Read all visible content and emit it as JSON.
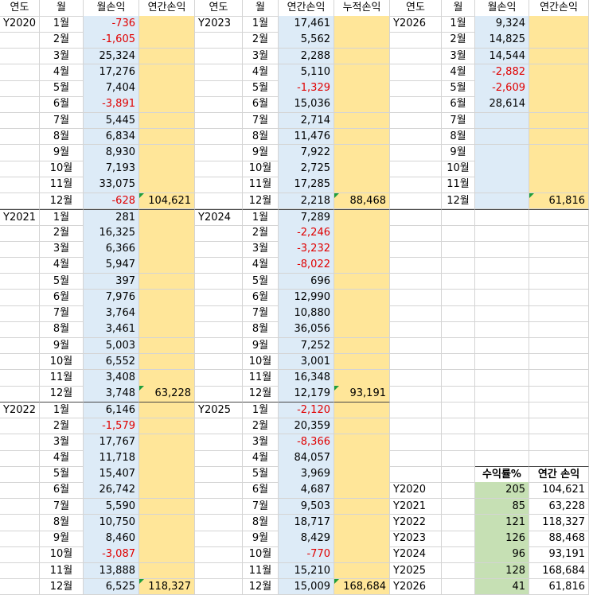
{
  "groups": [
    {
      "header": [
        "연도",
        "월",
        "월손익",
        "연간손익"
      ],
      "blocks": [
        {
          "year": "Y2020",
          "values": [
            "-736",
            "-1,605",
            "25,324",
            "17,276",
            "7,404",
            "-3,891",
            "5,445",
            "6,834",
            "8,930",
            "7,193",
            "33,075",
            "-628"
          ],
          "total": "104,621"
        },
        {
          "year": "Y2021",
          "values": [
            "281",
            "16,325",
            "6,366",
            "5,947",
            "397",
            "7,976",
            "3,764",
            "3,461",
            "5,003",
            "6,552",
            "3,408",
            "3,748"
          ],
          "total": "63,228"
        },
        {
          "year": "Y2022",
          "values": [
            "6,146",
            "-1,579",
            "17,767",
            "11,718",
            "15,407",
            "26,742",
            "5,590",
            "10,750",
            "8,460",
            "-3,087",
            "13,888",
            "6,525"
          ],
          "total": "118,327"
        }
      ]
    },
    {
      "header": [
        "연도",
        "월",
        "연간손익",
        "누적손익"
      ],
      "blocks": [
        {
          "year": "Y2023",
          "values": [
            "17,461",
            "5,562",
            "2,288",
            "5,110",
            "-1,329",
            "15,036",
            "2,714",
            "11,476",
            "7,922",
            "2,725",
            "17,285",
            "2,218"
          ],
          "total": "88,468"
        },
        {
          "year": "Y2024",
          "values": [
            "7,289",
            "-2,246",
            "-3,232",
            "-8,022",
            "696",
            "12,990",
            "10,880",
            "36,056",
            "7,252",
            "3,001",
            "16,348",
            "12,179"
          ],
          "total": "93,191"
        },
        {
          "year": "Y2025",
          "values": [
            "-2,120",
            "20,359",
            "-8,366",
            "84,057",
            "3,969",
            "4,687",
            "9,503",
            "18,717",
            "8,429",
            "-770",
            "15,210",
            "15,009"
          ],
          "total": "168,684"
        }
      ]
    },
    {
      "header": [
        "연도",
        "월",
        "월손익",
        "연간손익"
      ],
      "blocks": [
        {
          "year": "Y2026",
          "values": [
            "9,324",
            "14,825",
            "14,544",
            "-2,882",
            "-2,609",
            "28,614"
          ],
          "total": "61,816"
        }
      ]
    }
  ],
  "months": [
    "1월",
    "2월",
    "3월",
    "4월",
    "5월",
    "6월",
    "7월",
    "8월",
    "9월",
    "10월",
    "11월",
    "12월"
  ],
  "summary": {
    "header": [
      "수익률%",
      "연간 손익"
    ],
    "rows": [
      [
        "Y2020",
        "205",
        "104,621"
      ],
      [
        "Y2021",
        "85",
        "63,228"
      ],
      [
        "Y2022",
        "121",
        "118,327"
      ],
      [
        "Y2023",
        "126",
        "88,468"
      ],
      [
        "Y2024",
        "96",
        "93,191"
      ],
      [
        "Y2025",
        "128",
        "168,684"
      ],
      [
        "Y2026",
        "41",
        "61,816"
      ]
    ]
  }
}
